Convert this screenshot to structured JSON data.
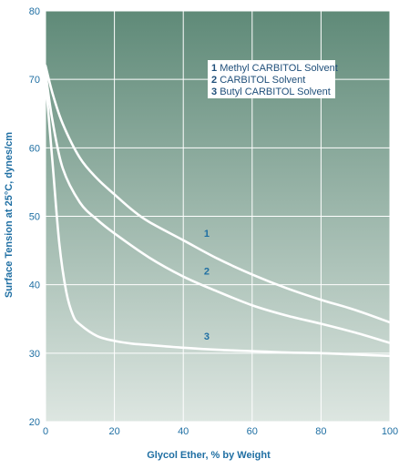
{
  "colors": {
    "plot_top": "#5f8a78",
    "plot_bottom": "#dde6e1",
    "grid": "#ffffff",
    "curve": "#ffffff",
    "label": "#1f6fa3",
    "legend_bg": "#ffffff",
    "legend_text": "#1f4f7a"
  },
  "chart_data": {
    "type": "line",
    "title": "",
    "xlabel": "Glycol Ether, % by Weight",
    "ylabel": "Surface Tension at 25°C, dynes/cm",
    "xlim": [
      0,
      100
    ],
    "ylim": [
      20,
      80
    ],
    "xticks": [
      0,
      20,
      40,
      60,
      80,
      100
    ],
    "yticks": [
      20,
      30,
      40,
      50,
      60,
      70,
      80
    ],
    "grid": true,
    "legend_position": "top-right",
    "legend": [
      {
        "num": "1",
        "text": "Methyl CARBITOL Solvent"
      },
      {
        "num": "2",
        "text": "CARBITOL Solvent"
      },
      {
        "num": "3",
        "text": "Butyl CARBITOL Solvent"
      }
    ],
    "series": [
      {
        "name": "1",
        "label_at": [
          46,
          47
        ],
        "points": [
          [
            0,
            72
          ],
          [
            2,
            68
          ],
          [
            5,
            63.5
          ],
          [
            10,
            58.5
          ],
          [
            15,
            55.5
          ],
          [
            20,
            53.2
          ],
          [
            25,
            51
          ],
          [
            30,
            49.2
          ],
          [
            40,
            46.5
          ],
          [
            50,
            43.8
          ],
          [
            60,
            41.5
          ],
          [
            70,
            39.5
          ],
          [
            80,
            37.8
          ],
          [
            90,
            36.3
          ],
          [
            100,
            34.5
          ]
        ]
      },
      {
        "name": "2",
        "label_at": [
          46,
          41.5
        ],
        "points": [
          [
            0,
            71
          ],
          [
            2,
            64
          ],
          [
            5,
            57
          ],
          [
            10,
            52
          ],
          [
            15,
            49.5
          ],
          [
            20,
            47.5
          ],
          [
            30,
            44
          ],
          [
            40,
            41.2
          ],
          [
            50,
            39
          ],
          [
            60,
            37
          ],
          [
            70,
            35.5
          ],
          [
            80,
            34.3
          ],
          [
            90,
            33
          ],
          [
            100,
            31.5
          ]
        ]
      },
      {
        "name": "3",
        "label_at": [
          46,
          32
        ],
        "points": [
          [
            0,
            70
          ],
          [
            2,
            58
          ],
          [
            4,
            46
          ],
          [
            6,
            39
          ],
          [
            8,
            35.5
          ],
          [
            10,
            34.2
          ],
          [
            15,
            32.5
          ],
          [
            20,
            31.8
          ],
          [
            25,
            31.4
          ],
          [
            30,
            31.2
          ],
          [
            40,
            30.8
          ],
          [
            50,
            30.5
          ],
          [
            60,
            30.3
          ],
          [
            70,
            30.1
          ],
          [
            80,
            30
          ],
          [
            90,
            29.8
          ],
          [
            100,
            29.6
          ]
        ]
      }
    ]
  }
}
